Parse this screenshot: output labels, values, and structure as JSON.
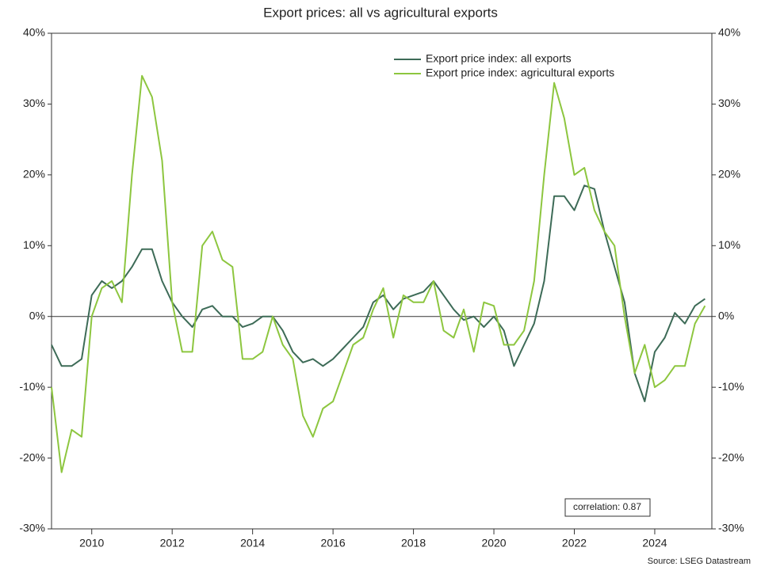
{
  "chart_data": {
    "type": "line",
    "title": "Export prices: all vs agricultural exports",
    "x": [
      2009,
      2009.25,
      2009.5,
      2009.75,
      2010,
      2010.25,
      2010.5,
      2010.75,
      2011,
      2011.25,
      2011.5,
      2011.75,
      2012,
      2012.25,
      2012.5,
      2012.75,
      2013,
      2013.25,
      2013.5,
      2013.75,
      2014,
      2014.25,
      2014.5,
      2014.75,
      2015,
      2015.25,
      2015.5,
      2015.75,
      2016,
      2016.25,
      2016.5,
      2016.75,
      2017,
      2017.25,
      2017.5,
      2017.75,
      2018,
      2018.25,
      2018.5,
      2018.75,
      2019,
      2019.25,
      2019.5,
      2019.75,
      2020,
      2020.25,
      2020.5,
      2020.75,
      2021,
      2021.25,
      2021.5,
      2021.75,
      2022,
      2022.25,
      2022.5,
      2022.75,
      2023,
      2023.25,
      2023.5,
      2023.75,
      2024,
      2024.25,
      2024.5,
      2024.75,
      2025,
      2025.25
    ],
    "series": [
      {
        "name": "Export price index: all exports",
        "color": "#3d6b57",
        "values": [
          -4,
          -7,
          -7,
          -6,
          3,
          5,
          4,
          5,
          7,
          9.5,
          9.5,
          5,
          2,
          0,
          -1.5,
          1,
          1.5,
          0,
          0,
          -1.5,
          -1,
          0,
          0,
          -2,
          -5,
          -6.5,
          -6,
          -7,
          -6,
          -4.5,
          -3,
          -1.5,
          2,
          3,
          1,
          2.5,
          3,
          3.5,
          5,
          3,
          1,
          -0.5,
          0,
          -1.5,
          0,
          -2,
          -7,
          -4,
          -1,
          5,
          17,
          17,
          15,
          18.5,
          18,
          12,
          7,
          2,
          -8,
          -12,
          -5,
          -3,
          0.5,
          -1,
          1.5,
          2.5
        ]
      },
      {
        "name": "Export price index: agricultural exports",
        "color": "#8dc63f",
        "values": [
          -10,
          -22,
          -16,
          -17,
          0,
          4,
          5,
          2,
          20,
          34,
          31,
          22,
          2,
          -5,
          -5,
          10,
          12,
          8,
          7,
          -6,
          -6,
          -5,
          0,
          -4,
          -6,
          -14,
          -17,
          -13,
          -12,
          -8,
          -4,
          -3,
          1,
          4,
          -3,
          3,
          2,
          2,
          5,
          -2,
          -3,
          1,
          -5,
          2,
          1.5,
          -4,
          -4,
          -2,
          5,
          20,
          33,
          28,
          20,
          21,
          15,
          12,
          10,
          0,
          -8,
          -4,
          -10,
          -9,
          -7,
          -7,
          -1,
          1.5
        ]
      }
    ],
    "xlim": [
      2009,
      2025.42
    ],
    "xticks": [
      2010,
      2012,
      2014,
      2016,
      2018,
      2020,
      2022,
      2024
    ],
    "ylim": [
      -30,
      40
    ],
    "yticks": [
      {
        "value": -30,
        "label": "-30%"
      },
      {
        "value": -20,
        "label": "-20%"
      },
      {
        "value": -10,
        "label": "-10%"
      },
      {
        "value": 0,
        "label": "0%"
      },
      {
        "value": 10,
        "label": "10%"
      },
      {
        "value": 20,
        "label": "20%"
      },
      {
        "value": 30,
        "label": "30%"
      },
      {
        "value": 40,
        "label": "40%"
      }
    ],
    "y2lim": [
      -30,
      40
    ],
    "y2ticks": [
      {
        "value": -30,
        "label": "-30%"
      },
      {
        "value": -20,
        "label": "-20%"
      },
      {
        "value": -10,
        "label": "-10%"
      },
      {
        "value": 0,
        "label": "0%"
      },
      {
        "value": 10,
        "label": "10%"
      },
      {
        "value": 20,
        "label": "20%"
      },
      {
        "value": 30,
        "label": "30%"
      },
      {
        "value": 40,
        "label": "40%"
      }
    ],
    "zero_line": true,
    "annotation": "correlation: 0.87",
    "source": "Source: LSEG Datastream"
  }
}
